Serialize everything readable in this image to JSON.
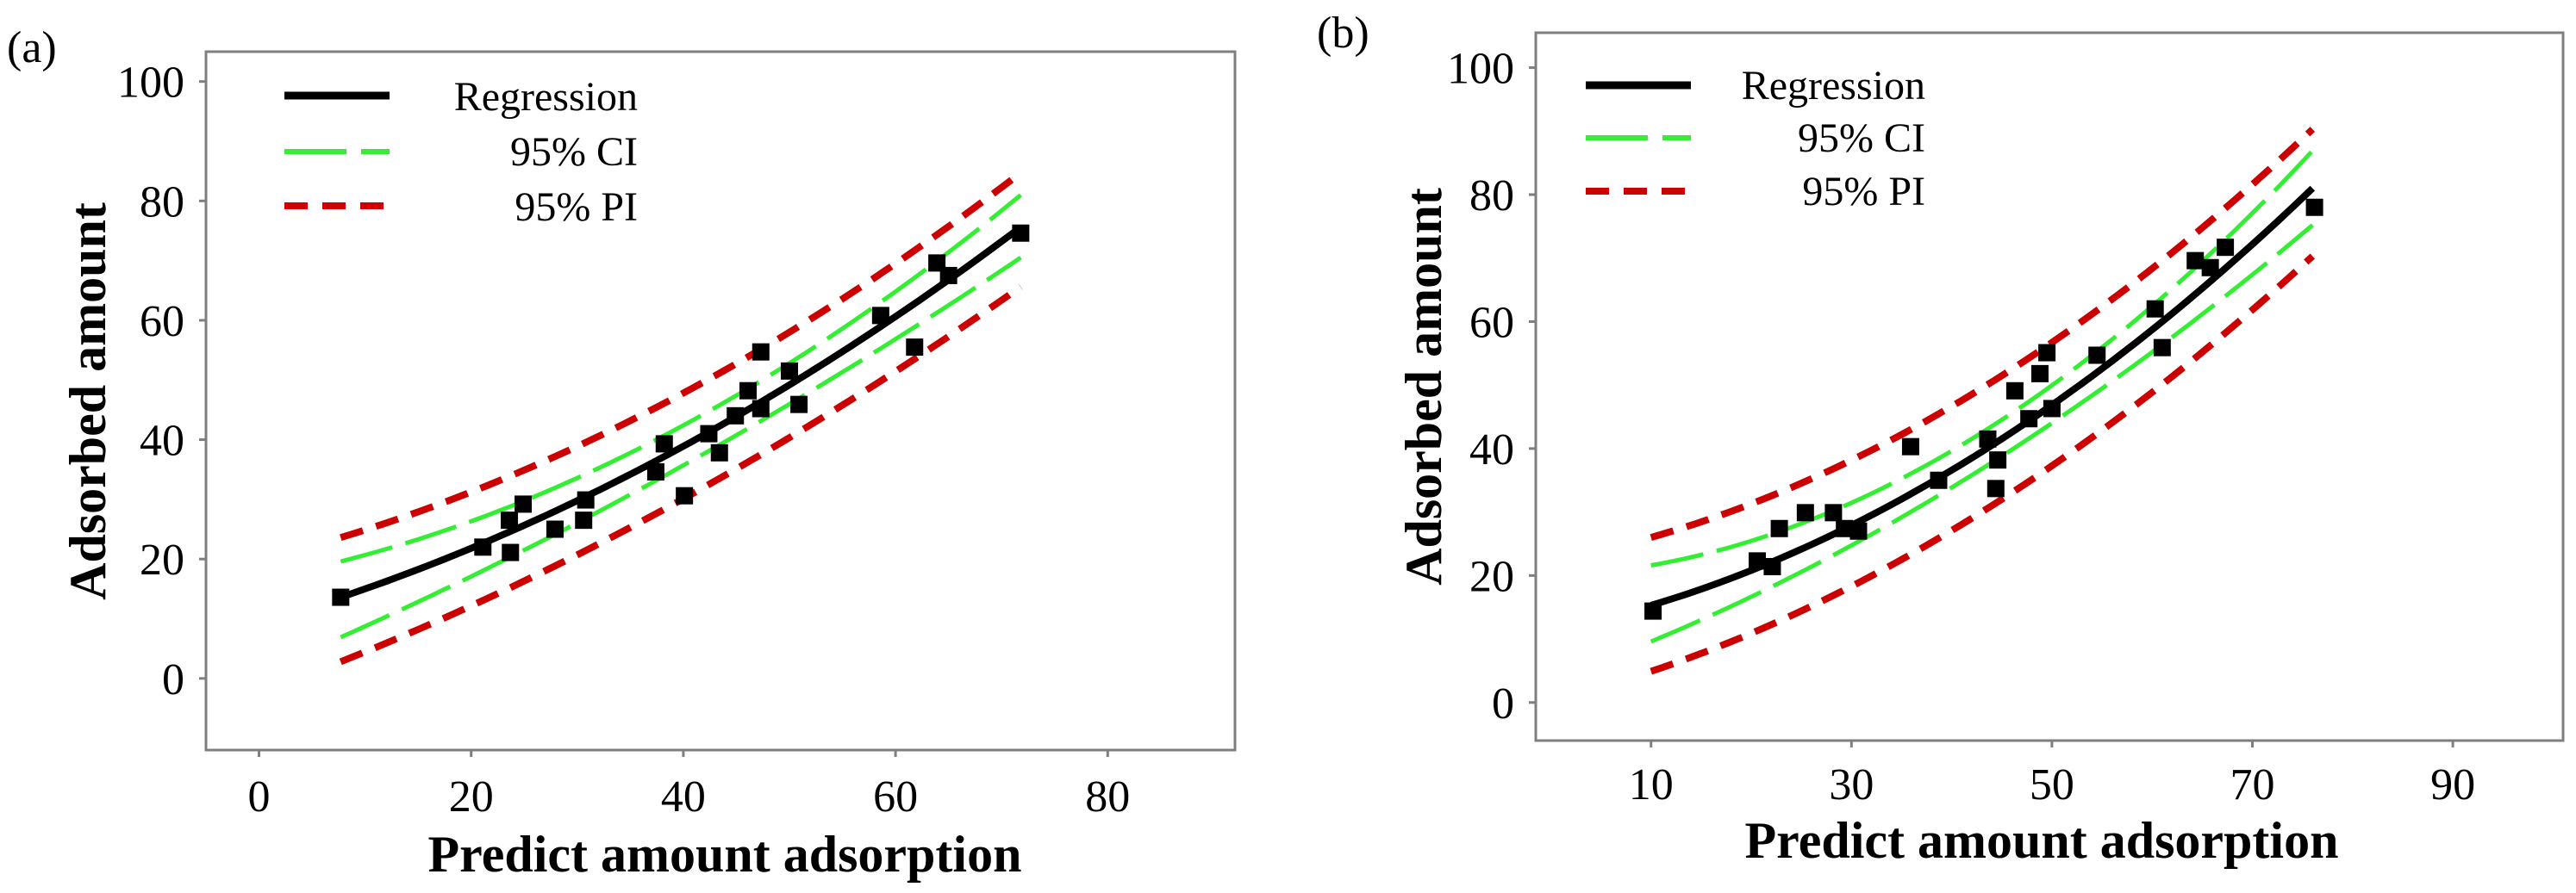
{
  "chart_data": [
    {
      "panel": "(a)",
      "type": "scatter",
      "xlabel": "Predict amount adsorption",
      "ylabel": "Adsorbed  amount",
      "xlim": [
        -5,
        92
      ],
      "ylim": [
        -12,
        105
      ],
      "xticks": [
        0,
        20,
        40,
        60,
        80
      ],
      "yticks": [
        0,
        20,
        40,
        60,
        80,
        100
      ],
      "grid": false,
      "legend_position": "top-left",
      "legend": [
        {
          "label": "Regression",
          "style": "solid",
          "color": "#000000"
        },
        {
          "label": "95% CI",
          "style": "long-dash",
          "color": "#33ee33"
        },
        {
          "label": "95% PI",
          "style": "short-dash",
          "color": "#cc0000"
        }
      ],
      "points": [
        [
          7.7,
          13.6
        ],
        [
          21.1,
          22.0
        ],
        [
          23.6,
          26.5
        ],
        [
          24.9,
          29.2
        ],
        [
          23.7,
          21.1
        ],
        [
          27.9,
          25.0
        ],
        [
          30.6,
          26.5
        ],
        [
          30.8,
          29.9
        ],
        [
          37.4,
          34.6
        ],
        [
          38.2,
          39.3
        ],
        [
          40.1,
          30.6
        ],
        [
          42.4,
          41.0
        ],
        [
          43.4,
          37.8
        ],
        [
          44.9,
          44.0
        ],
        [
          46.1,
          48.2
        ],
        [
          47.3,
          54.7
        ],
        [
          47.3,
          45.2
        ],
        [
          50.0,
          51.5
        ],
        [
          50.9,
          45.9
        ],
        [
          58.6,
          60.8
        ],
        [
          61.8,
          55.5
        ],
        [
          63.9,
          69.6
        ],
        [
          65.0,
          67.5
        ],
        [
          71.8,
          74.6
        ]
      ],
      "curves": {
        "regression": [
          [
            7.7,
            13.6
          ],
          [
            40,
            38.9
          ],
          [
            71.8,
            75.6
          ]
        ],
        "ci_upper": [
          [
            7.7,
            19.6
          ],
          [
            40,
            42.4
          ],
          [
            71.8,
            81.0
          ]
        ],
        "ci_lower": [
          [
            7.7,
            6.9
          ],
          [
            40,
            35.7
          ],
          [
            71.8,
            70.5
          ]
        ],
        "pi_upper": [
          [
            7.7,
            23.6
          ],
          [
            40,
            47.8
          ],
          [
            71.8,
            84.7
          ]
        ],
        "pi_lower": [
          [
            7.7,
            2.8
          ],
          [
            40,
            30.1
          ],
          [
            71.8,
            65.6
          ]
        ]
      }
    },
    {
      "panel": "(b)",
      "type": "scatter",
      "xlabel": "Predict amount adsorption",
      "ylabel": "Adsorbed  amount",
      "xlim": [
        -1.5,
        101
      ],
      "ylim": [
        -6,
        105.5
      ],
      "xticks": [
        10,
        30,
        50,
        70,
        90
      ],
      "yticks": [
        0,
        20,
        40,
        60,
        80,
        100
      ],
      "grid": false,
      "legend_position": "top-left",
      "legend": [
        {
          "label": "Regression",
          "style": "solid",
          "color": "#000000"
        },
        {
          "label": "95% CI",
          "style": "long-dash",
          "color": "#33ee33"
        },
        {
          "label": "95% PI",
          "style": "short-dash",
          "color": "#cc0000"
        }
      ],
      "points": [
        [
          10.2,
          14.4
        ],
        [
          20.6,
          22.3
        ],
        [
          22.1,
          21.4
        ],
        [
          22.8,
          27.4
        ],
        [
          25.4,
          29.9
        ],
        [
          28.2,
          29.9
        ],
        [
          29.3,
          27.4
        ],
        [
          30.7,
          27.0
        ],
        [
          35.9,
          40.3
        ],
        [
          38.7,
          35.0
        ],
        [
          43.6,
          41.5
        ],
        [
          44.6,
          38.2
        ],
        [
          44.4,
          33.7
        ],
        [
          46.3,
          49.1
        ],
        [
          47.7,
          44.7
        ],
        [
          48.8,
          51.8
        ],
        [
          49.5,
          55.1
        ],
        [
          50.0,
          46.3
        ],
        [
          54.5,
          54.7
        ],
        [
          60.3,
          62.0
        ],
        [
          61.0,
          55.9
        ],
        [
          64.3,
          69.6
        ],
        [
          65.8,
          68.5
        ],
        [
          67.3,
          71.7
        ],
        [
          76.2,
          78.0
        ]
      ],
      "curves": {
        "regression": [
          [
            10,
            15.3
          ],
          [
            43,
            39.5
          ],
          [
            76,
            81.0
          ]
        ],
        "ci_upper": [
          [
            10,
            21.6
          ],
          [
            43,
            42.5
          ],
          [
            76,
            86.9
          ]
        ],
        "ci_lower": [
          [
            10,
            9.6
          ],
          [
            43,
            36.8
          ],
          [
            76,
            75.2
          ]
        ],
        "pi_upper": [
          [
            10,
            26.0
          ],
          [
            43,
            49.5
          ],
          [
            76,
            90.3
          ]
        ],
        "pi_lower": [
          [
            10,
            4.9
          ],
          [
            43,
            30.0
          ],
          [
            76,
            70.3
          ]
        ]
      }
    }
  ]
}
